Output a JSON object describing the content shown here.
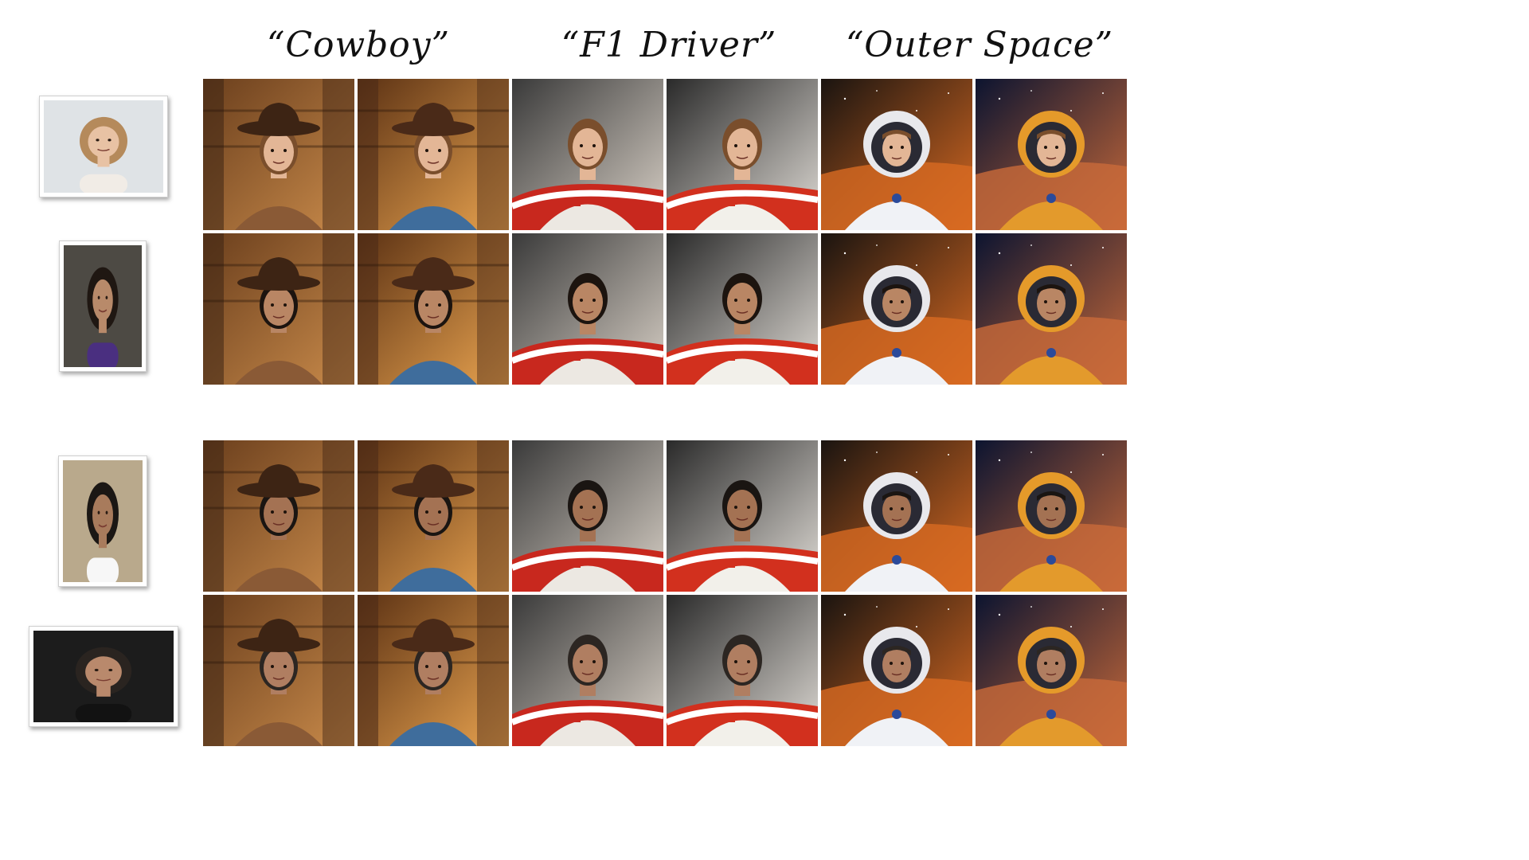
{
  "column_headers": [
    "“Cowboy”",
    "“F1 Driver”",
    "“Outer Space”"
  ],
  "references": [
    {
      "subject": "woman-light-hair",
      "background": "#dfe3e6",
      "hair": "#b58a5b",
      "skin": "#e8c2a4",
      "shirt": "#f1ece6"
    },
    {
      "subject": "woman-dark-hair",
      "background": "#4d4a44",
      "hair": "#1f1712",
      "skin": "#b88a6a",
      "shirt": "#4a2f80"
    },
    {
      "subject": "man-glasses",
      "background": "#b9a98c",
      "hair": "#1b1714",
      "skin": "#a87b5c",
      "shirt": "#f7f7f7"
    },
    {
      "subject": "man-beard",
      "background": "#1c1c1c",
      "hair": "#2a2420",
      "skin": "#b9896c",
      "shirt": "#121212"
    }
  ],
  "themes": [
    {
      "name": "cowboy",
      "bg_a": "#6b3f1d",
      "bg_b": "#c88a4a",
      "accent": "#3d2414",
      "suit": "#8a5a36"
    },
    {
      "name": "cowboy-closeup",
      "bg_a": "#5c3214",
      "bg_b": "#e7a24f",
      "accent": "#4a2a18",
      "suit": "#3f6d9c"
    },
    {
      "name": "f1",
      "bg_a": "#3a3a3a",
      "bg_b": "#d8d0c6",
      "accent": "#c8281e",
      "suit": "#ece8e2"
    },
    {
      "name": "f1-car",
      "bg_a": "#2a2a2a",
      "bg_b": "#e0dcd6",
      "accent": "#d2301e",
      "suit": "#f2f0ea"
    },
    {
      "name": "space",
      "bg_a": "#1a1410",
      "bg_b": "#d86a22",
      "accent": "#e8e8ec",
      "suit": "#f0f2f6"
    },
    {
      "name": "space-mars",
      "bg_a": "#0c1430",
      "bg_b": "#c96a3a",
      "accent": "#e59a2a",
      "suit": "#e39a2c"
    }
  ],
  "rows": [
    {
      "person": 0,
      "hair": "#7a4e2c",
      "skin": "#e3b696"
    },
    {
      "person": 1,
      "hair": "#1c140f",
      "skin": "#b98664"
    },
    {
      "person": 2,
      "hair": "#1a1512",
      "skin": "#a47253"
    },
    {
      "person": 3,
      "hair": "#2c2622",
      "skin": "#b07e61"
    }
  ]
}
